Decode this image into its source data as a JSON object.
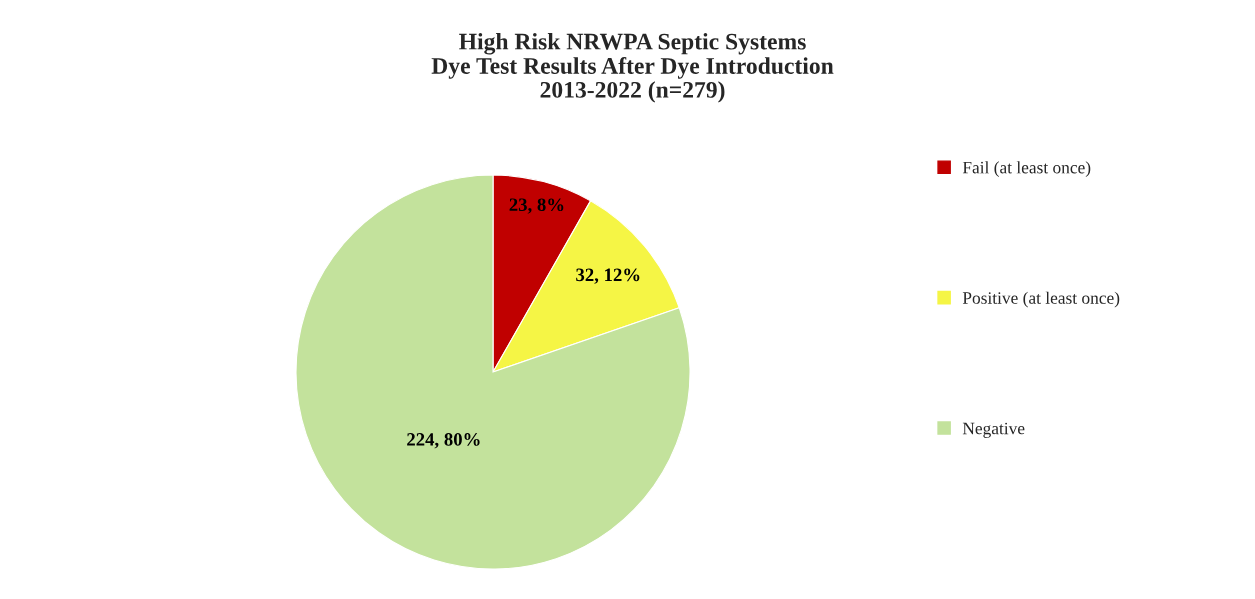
{
  "chart_data": {
    "type": "pie",
    "title": "High Risk NRWPA Septic Systems\nDye Test Results After Dye Introduction\n2013-2022 (n=279)",
    "categories": [
      "Fail (at least once)",
      "Positive (at least once)",
      "Negative"
    ],
    "values": [
      23,
      32,
      224
    ],
    "colors": [
      "#c00000",
      "#f5f545",
      "#c3e29c"
    ],
    "value_labels": [
      "23, 8%",
      "32, 12%",
      "224, 80%"
    ],
    "legend": "right"
  }
}
